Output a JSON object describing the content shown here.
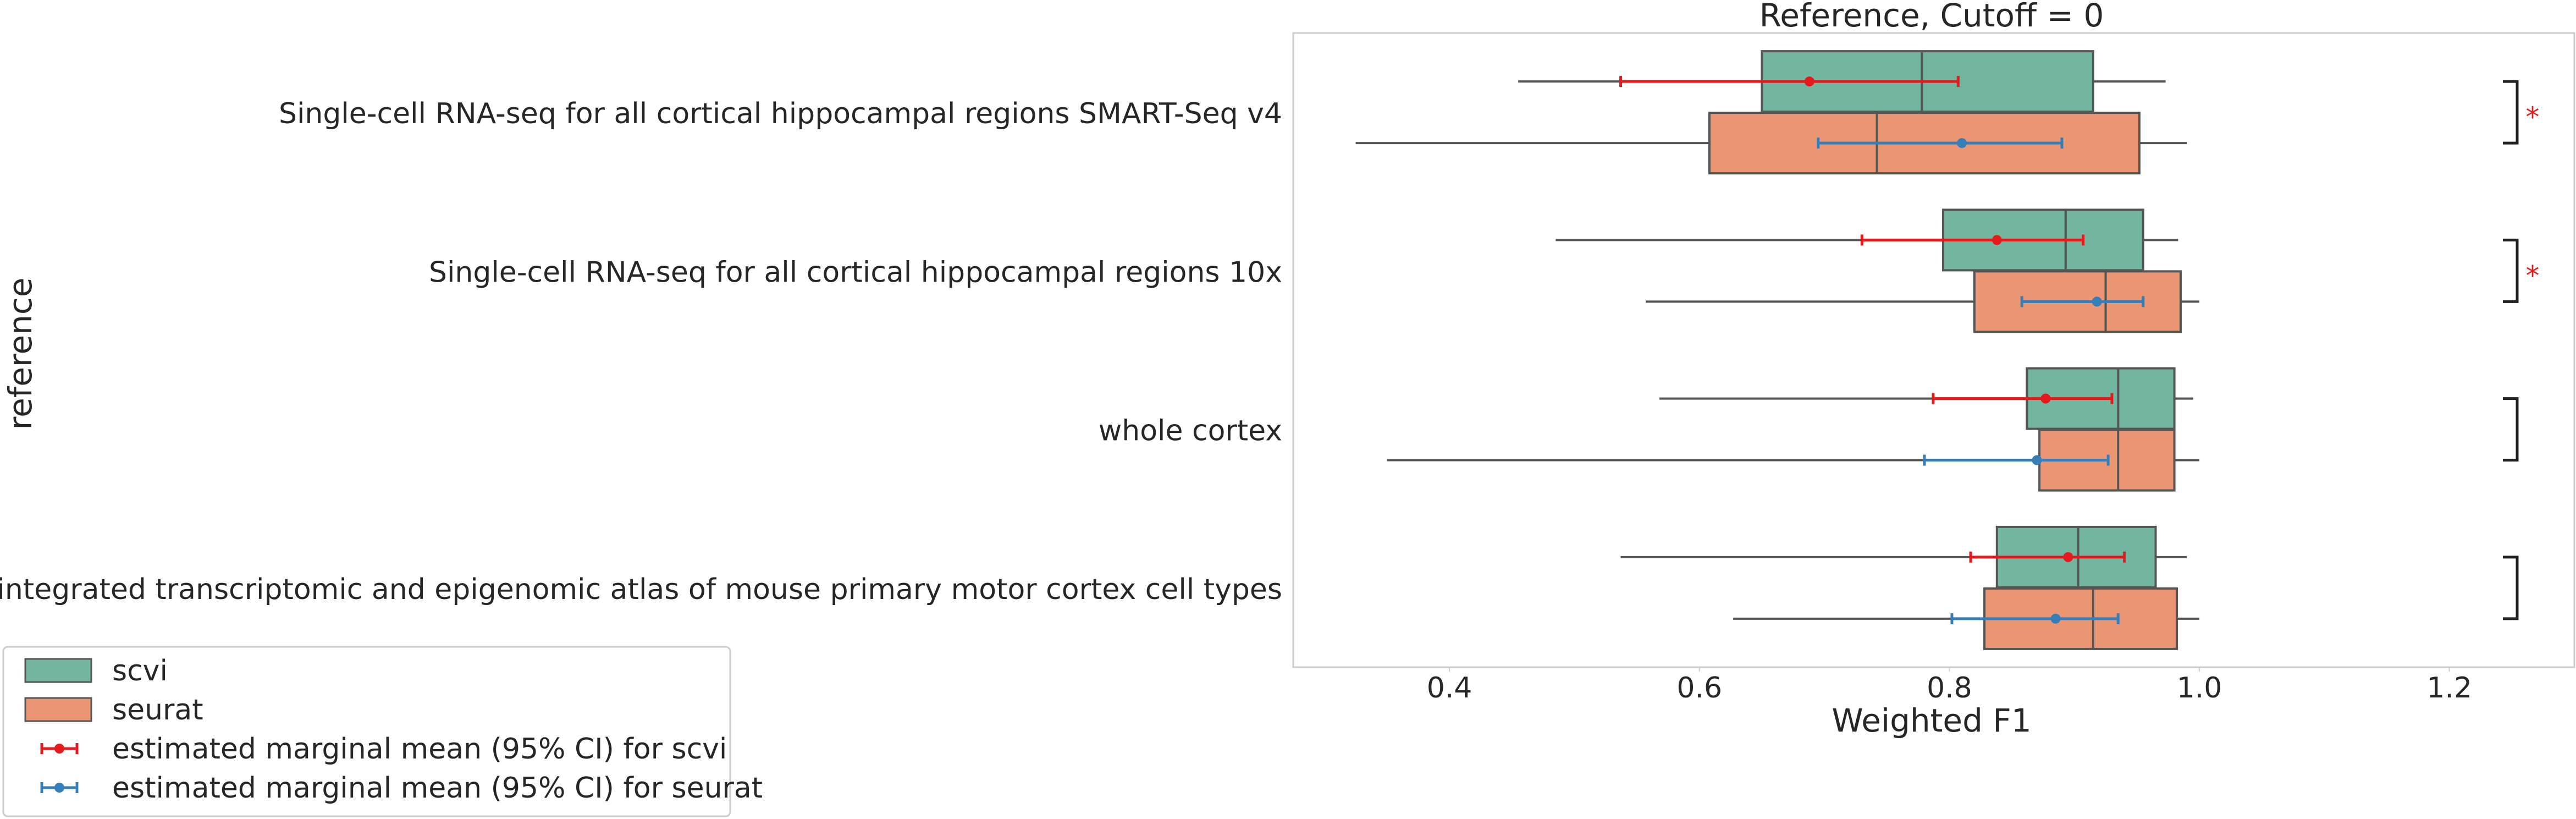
{
  "chart_data": {
    "type": "box",
    "orientation": "horizontal",
    "title": "Reference, Cutoff = 0",
    "xlabel": "Weighted F1",
    "ylabel": "reference",
    "xlim": [
      0.275,
      1.3
    ],
    "xticks": [
      0.4,
      0.6,
      0.8,
      1.0,
      1.2
    ],
    "grid": false,
    "legend_position": "bottom-left (below axes)",
    "series": [
      {
        "name": "scvi",
        "color": "#72b6a0"
      },
      {
        "name": "seurat",
        "color": "#eb9673"
      }
    ],
    "categories": [
      {
        "label": "Single-cell RNA-seq for all cortical  hippocampal regions SMART-Seq v4",
        "boxes": {
          "scvi": {
            "whislo": 0.455,
            "q1": 0.65,
            "med": 0.778,
            "q3": 0.915,
            "whishi": 0.973
          },
          "seurat": {
            "whislo": 0.325,
            "q1": 0.608,
            "med": 0.742,
            "q3": 0.952,
            "whishi": 0.99
          }
        },
        "emmeans": {
          "scvi": {
            "mean": 0.688,
            "lower": 0.537,
            "upper": 0.807
          },
          "seurat": {
            "mean": 0.81,
            "lower": 0.695,
            "upper": 0.89
          }
        },
        "significance": "*"
      },
      {
        "label": "Single-cell RNA-seq for all cortical  hippocampal regions 10x",
        "boxes": {
          "scvi": {
            "whislo": 0.485,
            "q1": 0.795,
            "med": 0.893,
            "q3": 0.955,
            "whishi": 0.983
          },
          "seurat": {
            "whislo": 0.557,
            "q1": 0.82,
            "med": 0.925,
            "q3": 0.985,
            "whishi": 1.0
          }
        },
        "emmeans": {
          "scvi": {
            "mean": 0.838,
            "lower": 0.73,
            "upper": 0.907
          },
          "seurat": {
            "mean": 0.918,
            "lower": 0.858,
            "upper": 0.955
          }
        },
        "significance": "*"
      },
      {
        "label": "whole cortex",
        "boxes": {
          "scvi": {
            "whislo": 0.568,
            "q1": 0.862,
            "med": 0.935,
            "q3": 0.98,
            "whishi": 0.995
          },
          "seurat": {
            "whislo": 0.35,
            "q1": 0.872,
            "med": 0.935,
            "q3": 0.98,
            "whishi": 1.0
          }
        },
        "emmeans": {
          "scvi": {
            "mean": 0.877,
            "lower": 0.787,
            "upper": 0.93
          },
          "seurat": {
            "mean": 0.87,
            "lower": 0.78,
            "upper": 0.927
          }
        },
        "significance": ""
      },
      {
        "label": "An integrated transcriptomic and epigenomic atlas of mouse primary motor cortex cell types",
        "boxes": {
          "scvi": {
            "whislo": 0.537,
            "q1": 0.838,
            "med": 0.903,
            "q3": 0.965,
            "whishi": 0.99
          },
          "seurat": {
            "whislo": 0.627,
            "q1": 0.828,
            "med": 0.915,
            "q3": 0.982,
            "whishi": 1.0
          }
        },
        "emmeans": {
          "scvi": {
            "mean": 0.895,
            "lower": 0.817,
            "upper": 0.94
          },
          "seurat": {
            "mean": 0.885,
            "lower": 0.802,
            "upper": 0.935
          }
        },
        "significance": ""
      }
    ],
    "legend": [
      {
        "label": "scvi",
        "kind": "patch",
        "color": "#72b6a0"
      },
      {
        "label": "seurat",
        "kind": "patch",
        "color": "#eb9673"
      },
      {
        "label": "estimated marginal mean (95% CI) for scvi",
        "kind": "errorbar",
        "color": "#e41a1c"
      },
      {
        "label": "estimated marginal mean (95% CI) for seurat",
        "kind": "errorbar",
        "color": "#377eb8"
      }
    ]
  }
}
